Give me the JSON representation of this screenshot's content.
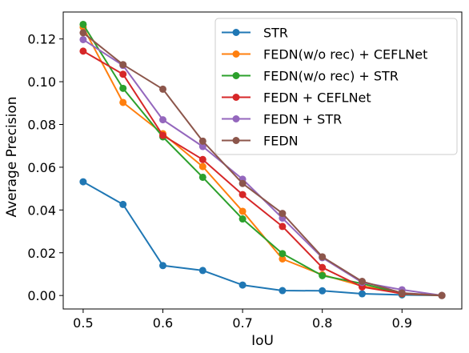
{
  "chart_data": {
    "type": "line",
    "title": "",
    "xlabel": "IoU",
    "ylabel": "Average Precision",
    "x": [
      0.5,
      0.55,
      0.6,
      0.65,
      0.7,
      0.75,
      0.8,
      0.85,
      0.9,
      0.95
    ],
    "xlim": [
      0.475,
      0.975
    ],
    "ylim": [
      -0.0063,
      0.1326
    ],
    "xticks": [
      0.5,
      0.6,
      0.7,
      0.8,
      0.9
    ],
    "xtick_labels": [
      "0.5",
      "0.6",
      "0.7",
      "0.8",
      "0.9"
    ],
    "yticks": [
      0.0,
      0.02,
      0.04,
      0.06,
      0.08,
      0.1,
      0.12
    ],
    "ytick_labels": [
      "0.00",
      "0.02",
      "0.04",
      "0.06",
      "0.08",
      "0.10",
      "0.12"
    ],
    "grid": false,
    "legend_position": "top-right",
    "series": [
      {
        "name": "STR",
        "color": "#1f77b4",
        "values": [
          0.0532,
          0.0426,
          0.014,
          0.0117,
          0.0049,
          0.0023,
          0.0022,
          0.0008,
          0.0003,
          0.0
        ]
      },
      {
        "name": "FEDN(w/o rec) + CEFLNet",
        "color": "#ff7f0e",
        "values": [
          0.1255,
          0.0903,
          0.0757,
          0.0603,
          0.0394,
          0.0171,
          0.0097,
          0.0045,
          0.0008,
          0.0
        ]
      },
      {
        "name": "FEDN(w/o rec) + STR",
        "color": "#2ca02c",
        "values": [
          0.1268,
          0.0969,
          0.0742,
          0.0553,
          0.0358,
          0.0196,
          0.0093,
          0.0056,
          0.0008,
          0.0
        ]
      },
      {
        "name": "FEDN + CEFLNet",
        "color": "#d62728",
        "values": [
          0.1143,
          0.1035,
          0.0749,
          0.0636,
          0.0472,
          0.0323,
          0.0131,
          0.004,
          0.0009,
          0.0
        ]
      },
      {
        "name": "FEDN + STR",
        "color": "#9467bd",
        "values": [
          0.1197,
          0.1076,
          0.0822,
          0.0697,
          0.0544,
          0.0362,
          0.0177,
          0.0061,
          0.0027,
          0.0
        ]
      },
      {
        "name": "FEDN",
        "color": "#8c564b",
        "values": [
          0.1229,
          0.108,
          0.0965,
          0.0722,
          0.0524,
          0.0384,
          0.0181,
          0.0066,
          0.0012,
          0.0
        ]
      }
    ]
  }
}
